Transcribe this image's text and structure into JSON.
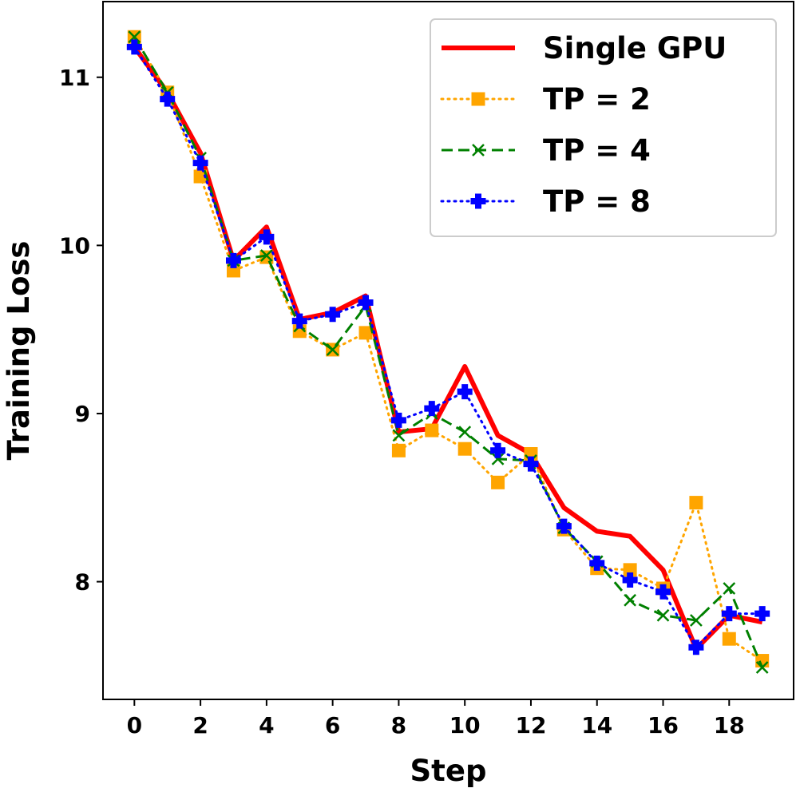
{
  "chart_data": {
    "type": "line",
    "title": "",
    "xlabel": "Step",
    "ylabel": "Training Loss",
    "xlim": [
      -0.95,
      19.95
    ],
    "ylim": [
      7.3,
      11.45
    ],
    "xticks": [
      0,
      2,
      4,
      6,
      8,
      10,
      12,
      14,
      16,
      18
    ],
    "yticks": [
      8,
      9,
      10,
      11
    ],
    "legend_position": "top-right",
    "x": [
      0,
      1,
      2,
      3,
      4,
      5,
      6,
      7,
      8,
      9,
      10,
      11,
      12,
      13,
      14,
      15,
      16,
      17,
      18,
      19
    ],
    "series": [
      {
        "name": "Single GPU",
        "color": "#ff0000",
        "style": "solid",
        "marker": "none",
        "values": [
          11.18,
          10.91,
          10.55,
          9.91,
          10.11,
          9.56,
          9.6,
          9.7,
          8.89,
          8.91,
          9.28,
          8.87,
          8.76,
          8.44,
          8.3,
          8.27,
          8.07,
          7.6,
          7.8,
          7.76
        ]
      },
      {
        "name": "TP = 2",
        "color": "#ffa500",
        "style": "dotted",
        "marker": "square",
        "values": [
          11.24,
          10.91,
          10.41,
          9.85,
          9.93,
          9.49,
          9.38,
          9.48,
          8.78,
          8.9,
          8.79,
          8.59,
          8.76,
          8.31,
          8.08,
          8.07,
          7.96,
          8.47,
          7.66,
          7.53
        ]
      },
      {
        "name": "TP = 4",
        "color": "#008000",
        "style": "dashed",
        "marker": "x",
        "values": [
          11.24,
          10.91,
          10.52,
          9.91,
          9.94,
          9.52,
          9.38,
          9.64,
          8.87,
          9.0,
          8.89,
          8.73,
          8.72,
          8.32,
          8.12,
          7.89,
          7.8,
          7.77,
          7.96,
          7.49
        ]
      },
      {
        "name": "TP = 8",
        "color": "#0000ff",
        "style": "dotted",
        "marker": "plus-filled",
        "values": [
          11.18,
          10.87,
          10.49,
          9.91,
          10.05,
          9.55,
          9.59,
          9.66,
          8.96,
          9.03,
          9.13,
          8.78,
          8.7,
          8.33,
          8.11,
          8.01,
          7.94,
          7.61,
          7.81,
          7.81
        ]
      }
    ]
  }
}
